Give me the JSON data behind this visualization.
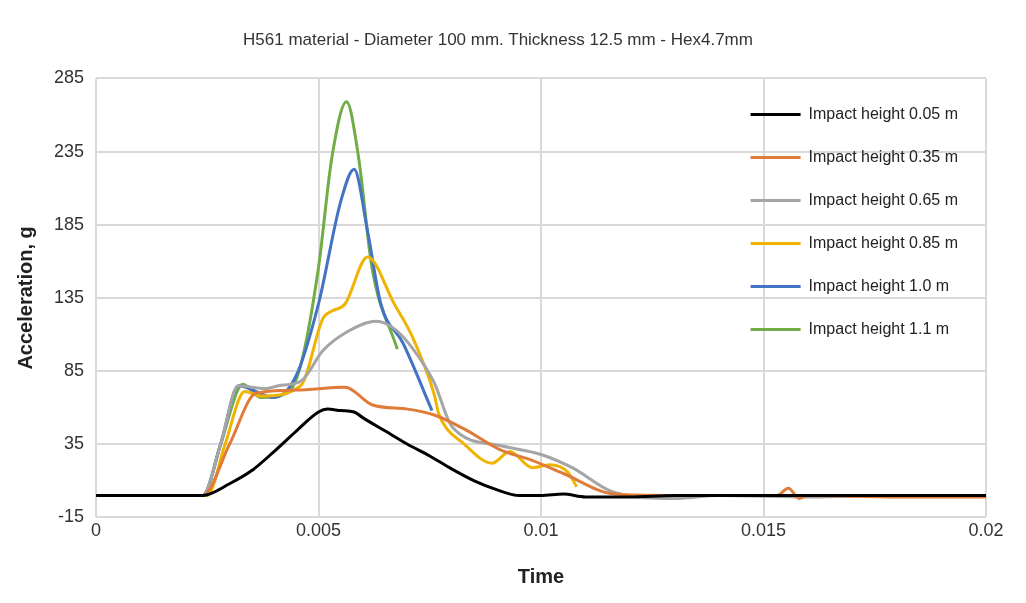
{
  "chart_data": {
    "type": "line",
    "title": "H561 material - Diameter 100 mm. Thickness 12.5 mm - Hex4.7mm",
    "xlabel": "Time",
    "ylabel": "Acceleration, g",
    "xlim": [
      0,
      0.02
    ],
    "xticks": [
      0,
      0.005,
      0.01,
      0.015,
      0.02
    ],
    "ylim": [
      -15,
      285
    ],
    "yticks": [
      -15,
      35,
      85,
      135,
      185,
      235,
      285
    ],
    "grid": true,
    "legend": "top right",
    "marker": "none",
    "line_style": "solid",
    "series": [
      {
        "name": "Impact height 0.05 m",
        "color": "#000000",
        "x": [
          0,
          0.001,
          0.0024,
          0.003,
          0.0035,
          0.004,
          0.0045,
          0.005,
          0.0052,
          0.0055,
          0.0058,
          0.006,
          0.0065,
          0.007,
          0.0075,
          0.008,
          0.0085,
          0.009,
          0.0095,
          0.01,
          0.0105,
          0.011,
          0.012,
          0.013,
          0.015,
          0.02
        ],
        "values": [
          0,
          0,
          0,
          8,
          17,
          30,
          44,
          57,
          59,
          58,
          57,
          53,
          44,
          35,
          27,
          18,
          10,
          4,
          0,
          0,
          1,
          -1,
          -1,
          0,
          0,
          0
        ]
      },
      {
        "name": "Impact height 0.35 m",
        "color": "#e07b39",
        "x": [
          0,
          0.0024,
          0.003,
          0.0036,
          0.0045,
          0.0056,
          0.0062,
          0.007,
          0.0076,
          0.0083,
          0.0091,
          0.0098,
          0.0105,
          0.01165,
          0.013,
          0.0153,
          0.01556,
          0.0158,
          0.016,
          0.018,
          0.02
        ],
        "values": [
          0,
          0,
          35,
          70,
          72,
          74,
          62,
          59,
          55,
          45,
          31,
          24,
          15,
          1,
          0,
          0,
          5,
          -2,
          0,
          -1,
          -1
        ]
      },
      {
        "name": "Impact height 0.65 m",
        "color": "#a5a5a5",
        "x": [
          0,
          0.0024,
          0.0028,
          0.0032,
          0.0038,
          0.0041,
          0.0046,
          0.0051,
          0.0056,
          0.0063,
          0.0067,
          0.0071,
          0.0076,
          0.008,
          0.0091,
          0.01,
          0.0107,
          0.01165,
          0.013,
          0.014,
          0.016,
          0.018,
          0.02
        ],
        "values": [
          0,
          0,
          35,
          75,
          73,
          75,
          78,
          99,
          111,
          119,
          114,
          101,
          77,
          47,
          34,
          28,
          19,
          2,
          -2,
          0,
          -1,
          0,
          0
        ]
      },
      {
        "name": "Impact height 0.85 m",
        "color": "#f0b400",
        "x": [
          0,
          0.0025,
          0.0029,
          0.00334,
          0.0037,
          0.0046,
          0.0051,
          0.0053,
          0.0056,
          0.0061,
          0.0067,
          0.0071,
          0.0076,
          0.0077,
          0.0079,
          0.0082,
          0.0089,
          0.0093,
          0.0098,
          0.0102,
          0.0106,
          0.0108
        ],
        "values": [
          0,
          0,
          35,
          71,
          68,
          75,
          121,
          126,
          131,
          163,
          131,
          109,
          69,
          56,
          45,
          37,
          22,
          30,
          19,
          21,
          16,
          6
        ]
      },
      {
        "name": "Impact height 1.0 m",
        "color": "#4472c4",
        "x": [
          0,
          0.0024,
          0.0028,
          0.0032,
          0.004,
          0.0045,
          0.005,
          0.0055,
          0.0058,
          0.0061,
          0.0064,
          0.0069,
          0.00755
        ],
        "values": [
          0,
          0,
          35,
          75,
          67,
          82,
          131,
          201,
          223,
          181,
          131,
          104,
          58
        ]
      },
      {
        "name": "Impact height 1.1 m",
        "color": "#70ad47",
        "x": [
          0,
          0.0024,
          0.0028,
          0.0033,
          0.0037,
          0.0043,
          0.0046,
          0.005,
          0.0053,
          0.00563,
          0.0059,
          0.0062,
          0.00677
        ],
        "values": [
          0,
          0,
          35,
          76,
          67,
          70,
          89,
          156,
          231,
          269,
          231,
          156,
          100
        ]
      }
    ]
  }
}
